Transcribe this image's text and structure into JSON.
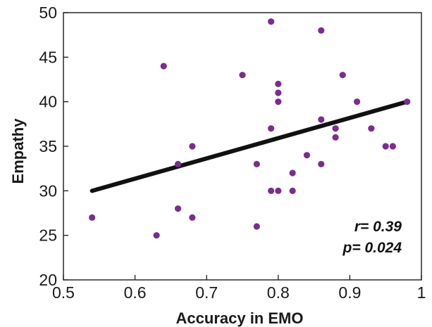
{
  "chart_data": {
    "type": "scatter",
    "title": "",
    "xlabel": "Accuracy in EMO",
    "ylabel": "Empathy",
    "xlim": [
      0.5,
      1.0
    ],
    "ylim": [
      20,
      50
    ],
    "xticks": [
      0.5,
      0.6,
      0.7,
      0.8,
      0.9,
      1.0
    ],
    "xtick_labels": [
      "0.5",
      "0.6",
      "0.7",
      "0.8",
      "0.9",
      "1"
    ],
    "yticks": [
      20,
      25,
      30,
      35,
      40,
      45,
      50
    ],
    "ytick_labels": [
      "20",
      "25",
      "30",
      "35",
      "40",
      "45",
      "50"
    ],
    "grid": false,
    "point_color": "#7b2d8e",
    "line_color": "#111111",
    "points": [
      {
        "x": 0.54,
        "y": 27
      },
      {
        "x": 0.63,
        "y": 25
      },
      {
        "x": 0.64,
        "y": 44
      },
      {
        "x": 0.66,
        "y": 33
      },
      {
        "x": 0.66,
        "y": 28
      },
      {
        "x": 0.68,
        "y": 35
      },
      {
        "x": 0.68,
        "y": 27
      },
      {
        "x": 0.75,
        "y": 43
      },
      {
        "x": 0.77,
        "y": 33
      },
      {
        "x": 0.77,
        "y": 26
      },
      {
        "x": 0.79,
        "y": 49
      },
      {
        "x": 0.79,
        "y": 37
      },
      {
        "x": 0.79,
        "y": 30
      },
      {
        "x": 0.8,
        "y": 42
      },
      {
        "x": 0.8,
        "y": 41
      },
      {
        "x": 0.8,
        "y": 40
      },
      {
        "x": 0.8,
        "y": 30
      },
      {
        "x": 0.82,
        "y": 32
      },
      {
        "x": 0.82,
        "y": 30
      },
      {
        "x": 0.84,
        "y": 34
      },
      {
        "x": 0.86,
        "y": 48
      },
      {
        "x": 0.86,
        "y": 38
      },
      {
        "x": 0.86,
        "y": 33
      },
      {
        "x": 0.88,
        "y": 37
      },
      {
        "x": 0.88,
        "y": 36
      },
      {
        "x": 0.89,
        "y": 43
      },
      {
        "x": 0.91,
        "y": 40
      },
      {
        "x": 0.93,
        "y": 37
      },
      {
        "x": 0.95,
        "y": 35
      },
      {
        "x": 0.96,
        "y": 35
      },
      {
        "x": 0.98,
        "y": 40
      }
    ],
    "trend_line": {
      "x": [
        0.54,
        0.98
      ],
      "y": [
        30,
        40
      ]
    },
    "annotations": {
      "r_text": "r= 0.39",
      "p_text": "p= 0.024"
    }
  }
}
